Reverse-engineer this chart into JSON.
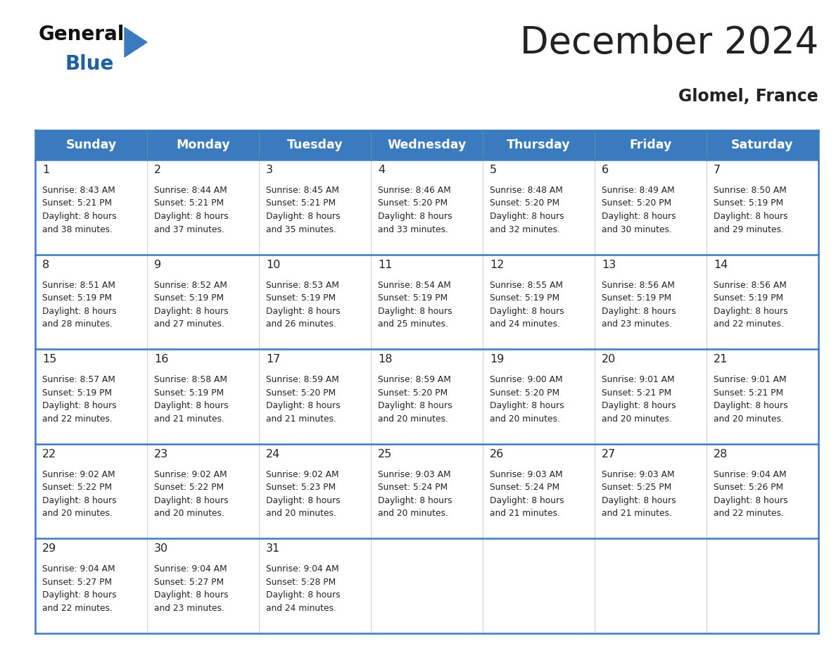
{
  "title": "December 2024",
  "subtitle": "Glomel, France",
  "header_color": "#3a7bbf",
  "header_text_color": "#ffffff",
  "border_color": "#3a7bbf",
  "cell_border_color": "#cccccc",
  "text_color": "#222222",
  "days_of_week": [
    "Sunday",
    "Monday",
    "Tuesday",
    "Wednesday",
    "Thursday",
    "Friday",
    "Saturday"
  ],
  "calendar": [
    [
      {
        "day": 1,
        "sunrise": "8:43 AM",
        "sunset": "5:21 PM",
        "daylight": "8 hours and 38 minutes"
      },
      {
        "day": 2,
        "sunrise": "8:44 AM",
        "sunset": "5:21 PM",
        "daylight": "8 hours and 37 minutes"
      },
      {
        "day": 3,
        "sunrise": "8:45 AM",
        "sunset": "5:21 PM",
        "daylight": "8 hours and 35 minutes"
      },
      {
        "day": 4,
        "sunrise": "8:46 AM",
        "sunset": "5:20 PM",
        "daylight": "8 hours and 33 minutes"
      },
      {
        "day": 5,
        "sunrise": "8:48 AM",
        "sunset": "5:20 PM",
        "daylight": "8 hours and 32 minutes"
      },
      {
        "day": 6,
        "sunrise": "8:49 AM",
        "sunset": "5:20 PM",
        "daylight": "8 hours and 30 minutes"
      },
      {
        "day": 7,
        "sunrise": "8:50 AM",
        "sunset": "5:19 PM",
        "daylight": "8 hours and 29 minutes"
      }
    ],
    [
      {
        "day": 8,
        "sunrise": "8:51 AM",
        "sunset": "5:19 PM",
        "daylight": "8 hours and 28 minutes"
      },
      {
        "day": 9,
        "sunrise": "8:52 AM",
        "sunset": "5:19 PM",
        "daylight": "8 hours and 27 minutes"
      },
      {
        "day": 10,
        "sunrise": "8:53 AM",
        "sunset": "5:19 PM",
        "daylight": "8 hours and 26 minutes"
      },
      {
        "day": 11,
        "sunrise": "8:54 AM",
        "sunset": "5:19 PM",
        "daylight": "8 hours and 25 minutes"
      },
      {
        "day": 12,
        "sunrise": "8:55 AM",
        "sunset": "5:19 PM",
        "daylight": "8 hours and 24 minutes"
      },
      {
        "day": 13,
        "sunrise": "8:56 AM",
        "sunset": "5:19 PM",
        "daylight": "8 hours and 23 minutes"
      },
      {
        "day": 14,
        "sunrise": "8:56 AM",
        "sunset": "5:19 PM",
        "daylight": "8 hours and 22 minutes"
      }
    ],
    [
      {
        "day": 15,
        "sunrise": "8:57 AM",
        "sunset": "5:19 PM",
        "daylight": "8 hours and 22 minutes"
      },
      {
        "day": 16,
        "sunrise": "8:58 AM",
        "sunset": "5:19 PM",
        "daylight": "8 hours and 21 minutes"
      },
      {
        "day": 17,
        "sunrise": "8:59 AM",
        "sunset": "5:20 PM",
        "daylight": "8 hours and 21 minutes"
      },
      {
        "day": 18,
        "sunrise": "8:59 AM",
        "sunset": "5:20 PM",
        "daylight": "8 hours and 20 minutes"
      },
      {
        "day": 19,
        "sunrise": "9:00 AM",
        "sunset": "5:20 PM",
        "daylight": "8 hours and 20 minutes"
      },
      {
        "day": 20,
        "sunrise": "9:01 AM",
        "sunset": "5:21 PM",
        "daylight": "8 hours and 20 minutes"
      },
      {
        "day": 21,
        "sunrise": "9:01 AM",
        "sunset": "5:21 PM",
        "daylight": "8 hours and 20 minutes"
      }
    ],
    [
      {
        "day": 22,
        "sunrise": "9:02 AM",
        "sunset": "5:22 PM",
        "daylight": "8 hours and 20 minutes"
      },
      {
        "day": 23,
        "sunrise": "9:02 AM",
        "sunset": "5:22 PM",
        "daylight": "8 hours and 20 minutes"
      },
      {
        "day": 24,
        "sunrise": "9:02 AM",
        "sunset": "5:23 PM",
        "daylight": "8 hours and 20 minutes"
      },
      {
        "day": 25,
        "sunrise": "9:03 AM",
        "sunset": "5:24 PM",
        "daylight": "8 hours and 20 minutes"
      },
      {
        "day": 26,
        "sunrise": "9:03 AM",
        "sunset": "5:24 PM",
        "daylight": "8 hours and 21 minutes"
      },
      {
        "day": 27,
        "sunrise": "9:03 AM",
        "sunset": "5:25 PM",
        "daylight": "8 hours and 21 minutes"
      },
      {
        "day": 28,
        "sunrise": "9:04 AM",
        "sunset": "5:26 PM",
        "daylight": "8 hours and 22 minutes"
      }
    ],
    [
      {
        "day": 29,
        "sunrise": "9:04 AM",
        "sunset": "5:27 PM",
        "daylight": "8 hours and 22 minutes"
      },
      {
        "day": 30,
        "sunrise": "9:04 AM",
        "sunset": "5:27 PM",
        "daylight": "8 hours and 23 minutes"
      },
      {
        "day": 31,
        "sunrise": "9:04 AM",
        "sunset": "5:28 PM",
        "daylight": "8 hours and 24 minutes"
      },
      null,
      null,
      null,
      null
    ]
  ],
  "logo_color1": "#111111",
  "logo_color2": "#2060a0",
  "logo_triangle_color": "#3a7bbf",
  "fig_width": 11.88,
  "fig_height": 9.18,
  "dpi": 100
}
